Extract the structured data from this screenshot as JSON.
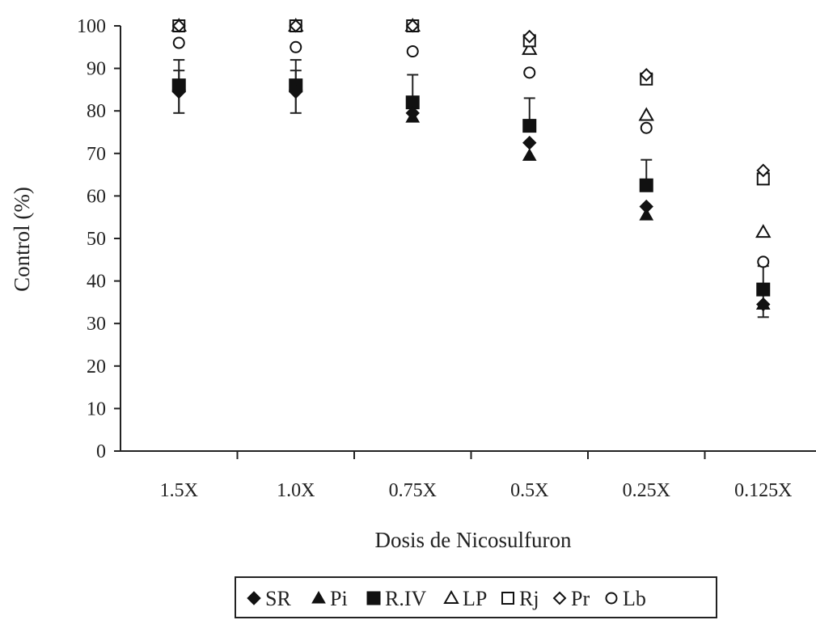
{
  "chart_data": {
    "type": "scatter",
    "title": "",
    "xlabel": "Dosis de Nicosulfuron",
    "ylabel": "Control (%)",
    "categories": [
      "1.5X",
      "1.0X",
      "0.75X",
      "0.5X",
      "0.25X",
      "0.125X"
    ],
    "ylim": [
      0,
      100
    ],
    "yticks": [
      0,
      10,
      20,
      30,
      40,
      50,
      60,
      70,
      80,
      90,
      100
    ],
    "grid": false,
    "legend_position": "bottom",
    "series": [
      {
        "name": "SR",
        "marker": "diamond-filled",
        "values": [
          84.5,
          84.5,
          79.5,
          72.5,
          57.5,
          34.5
        ],
        "error": [
          5,
          5,
          0,
          0,
          0,
          0
        ]
      },
      {
        "name": "Pi",
        "marker": "triangle-filled",
        "values": [
          86,
          86,
          78.5,
          69.5,
          55.5,
          34.5
        ],
        "error": [
          0,
          0,
          0,
          0,
          0,
          3
        ]
      },
      {
        "name": "R.IV",
        "marker": "square-filled",
        "values": [
          86,
          86,
          82,
          76.5,
          62.5,
          38
        ],
        "error": [
          6,
          6,
          6.5,
          6.5,
          6,
          5.5
        ]
      },
      {
        "name": "LP",
        "marker": "triangle-open",
        "values": [
          100,
          100,
          100,
          94.5,
          79,
          51.5
        ],
        "error": [
          0,
          0,
          0,
          0,
          0,
          0
        ]
      },
      {
        "name": "Rj",
        "marker": "square-open",
        "values": [
          100,
          100,
          100,
          96.5,
          87.5,
          64
        ],
        "error": [
          0,
          0,
          0,
          0,
          0,
          0
        ]
      },
      {
        "name": "Pr",
        "marker": "diamond-open",
        "values": [
          100,
          100,
          100,
          97.5,
          88.5,
          66
        ],
        "error": [
          0,
          0,
          0,
          0,
          0,
          0
        ]
      },
      {
        "name": "Lb",
        "marker": "circle-open",
        "values": [
          96,
          95,
          94,
          89,
          76,
          44.5
        ],
        "error": [
          0,
          0,
          0,
          0,
          0,
          0
        ]
      }
    ]
  }
}
